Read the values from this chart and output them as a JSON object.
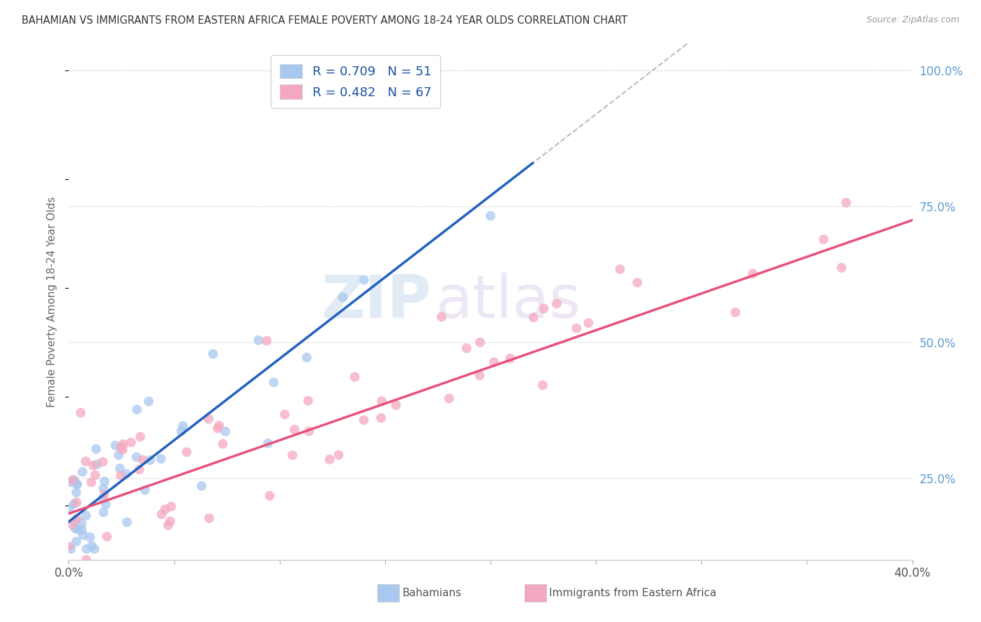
{
  "title": "BAHAMIAN VS IMMIGRANTS FROM EASTERN AFRICA FEMALE POVERTY AMONG 18-24 YEAR OLDS CORRELATION CHART",
  "source": "Source: ZipAtlas.com",
  "ylabel": "Female Poverty Among 18-24 Year Olds",
  "xlim": [
    0.0,
    0.4
  ],
  "ylim": [
    0.1,
    1.05
  ],
  "xticks": [
    0.0,
    0.05,
    0.1,
    0.15,
    0.2,
    0.25,
    0.3,
    0.35,
    0.4
  ],
  "yticks_right": [
    0.25,
    0.5,
    0.75,
    1.0
  ],
  "ytick_labels_right": [
    "25.0%",
    "50.0%",
    "75.0%",
    "100.0%"
  ],
  "series1_color": "#a8c8f0",
  "series2_color": "#f4a8c0",
  "line1_color": "#2060c0",
  "line2_color": "#e8507a",
  "R1": 0.709,
  "N1": 51,
  "R2": 0.482,
  "N2": 67,
  "label1": "Bahamians",
  "label2": "Immigrants from Eastern Africa",
  "background_color": "#ffffff",
  "watermark_zip": "ZIP",
  "watermark_atlas": "atlas",
  "grid_color": "#dddddd",
  "title_color": "#333333",
  "source_color": "#999999",
  "ylabel_color": "#666666",
  "right_tick_color": "#5b9bd5",
  "bottom_label_color": "#555555"
}
